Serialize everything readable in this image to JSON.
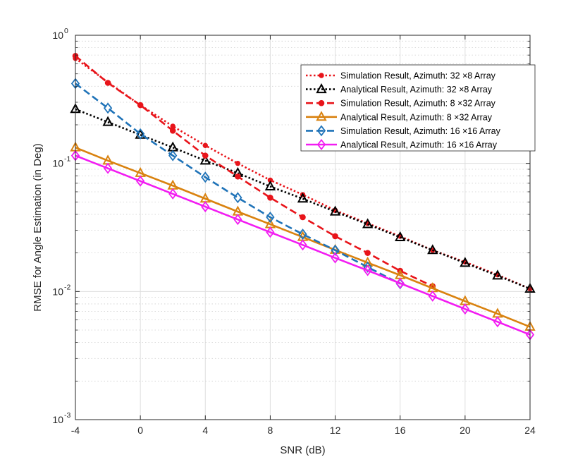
{
  "chart_data": {
    "type": "line",
    "xlabel": "SNR (dB)",
    "ylabel": "RMSE for Angle Estimation (in Deg)",
    "yscale": "log",
    "xlim": [
      -4,
      24
    ],
    "ylim": [
      0.001,
      1
    ],
    "xticks": [
      -4,
      0,
      4,
      8,
      12,
      16,
      20,
      24
    ],
    "xtick_labels": [
      "-4",
      "0",
      "4",
      "8",
      "12",
      "16",
      "20",
      "24"
    ],
    "yticks": [
      {
        "value": 1,
        "base": "10",
        "exp": "0"
      },
      {
        "value": 0.1,
        "base": "10",
        "exp": "-1"
      },
      {
        "value": 0.01,
        "base": "10",
        "exp": "-2"
      },
      {
        "value": 0.001,
        "base": "10",
        "exp": "-3"
      }
    ],
    "grid": true,
    "legend_position": "top-right",
    "series": [
      {
        "name": "Simulation Result, Azimuth: 32 ×8 Array",
        "color": "#e8141a",
        "dash": "dotted",
        "marker": "asterisk",
        "x": [
          -4,
          -2,
          0,
          2,
          4,
          6,
          8,
          10,
          12,
          14,
          16,
          18,
          20,
          22,
          24
        ],
        "values": [
          0.66,
          0.43,
          0.285,
          0.195,
          0.138,
          0.1,
          0.074,
          0.057,
          0.043,
          0.034,
          0.027,
          0.021,
          0.017,
          0.0135,
          0.0105
        ],
        "marker_x": [
          -4,
          0,
          2,
          4,
          6,
          8,
          10,
          12,
          14,
          16,
          18,
          20,
          22,
          24
        ]
      },
      {
        "name": "Analytical Result, Azimuth: 32 ×8 Array",
        "color": "#000000",
        "dash": "dotted",
        "marker": "triangle",
        "x": [
          -4,
          -2,
          0,
          2,
          4,
          6,
          8,
          10,
          12,
          14,
          16,
          18,
          20,
          22,
          24
        ],
        "values": [
          0.265,
          0.21,
          0.167,
          0.133,
          0.105,
          0.084,
          0.066,
          0.053,
          0.042,
          0.0335,
          0.0265,
          0.021,
          0.0167,
          0.0133,
          0.0105
        ]
      },
      {
        "name": "Simulation Result, Azimuth: 8 ×32 Array",
        "color": "#e8141a",
        "dash": "dashed",
        "marker": "circle",
        "x": [
          -4,
          -2,
          0,
          2,
          4,
          6,
          8,
          10,
          12,
          14,
          16,
          18
        ],
        "values": [
          0.69,
          0.425,
          0.285,
          0.18,
          0.115,
          0.079,
          0.054,
          0.038,
          0.027,
          0.02,
          0.0145,
          0.011
        ]
      },
      {
        "name": "Analytical Result, Azimuth: 8 ×32 Array",
        "color": "#d9820f",
        "dash": "solid",
        "marker": "triangle",
        "x": [
          -4,
          -2,
          0,
          2,
          4,
          6,
          8,
          10,
          12,
          14,
          16,
          18,
          20,
          22,
          24
        ],
        "values": [
          0.133,
          0.105,
          0.084,
          0.067,
          0.053,
          0.042,
          0.0335,
          0.0266,
          0.0211,
          0.0168,
          0.0134,
          0.0106,
          0.0084,
          0.0067,
          0.0053
        ]
      },
      {
        "name": "Simulation Result, Azimuth: 16 ×16 Array",
        "color": "#1f73b8",
        "dash": "dashed",
        "marker": "diamond",
        "x": [
          -4,
          -2,
          0,
          2,
          4,
          6,
          8,
          10,
          12,
          14,
          16
        ],
        "values": [
          0.42,
          0.27,
          0.17,
          0.115,
          0.078,
          0.054,
          0.038,
          0.028,
          0.021,
          0.0155,
          0.0115
        ]
      },
      {
        "name": "Analytical Result, Azimuth: 16 ×16 Array",
        "color": "#f21cf2",
        "dash": "solid",
        "marker": "diamond",
        "x": [
          -4,
          -2,
          0,
          2,
          4,
          6,
          8,
          10,
          12,
          14,
          16,
          18,
          20,
          22,
          24
        ],
        "values": [
          0.115,
          0.0915,
          0.0727,
          0.0578,
          0.0459,
          0.0365,
          0.029,
          0.0231,
          0.0183,
          0.0146,
          0.0116,
          0.0092,
          0.0073,
          0.0058,
          0.0046
        ]
      }
    ]
  }
}
